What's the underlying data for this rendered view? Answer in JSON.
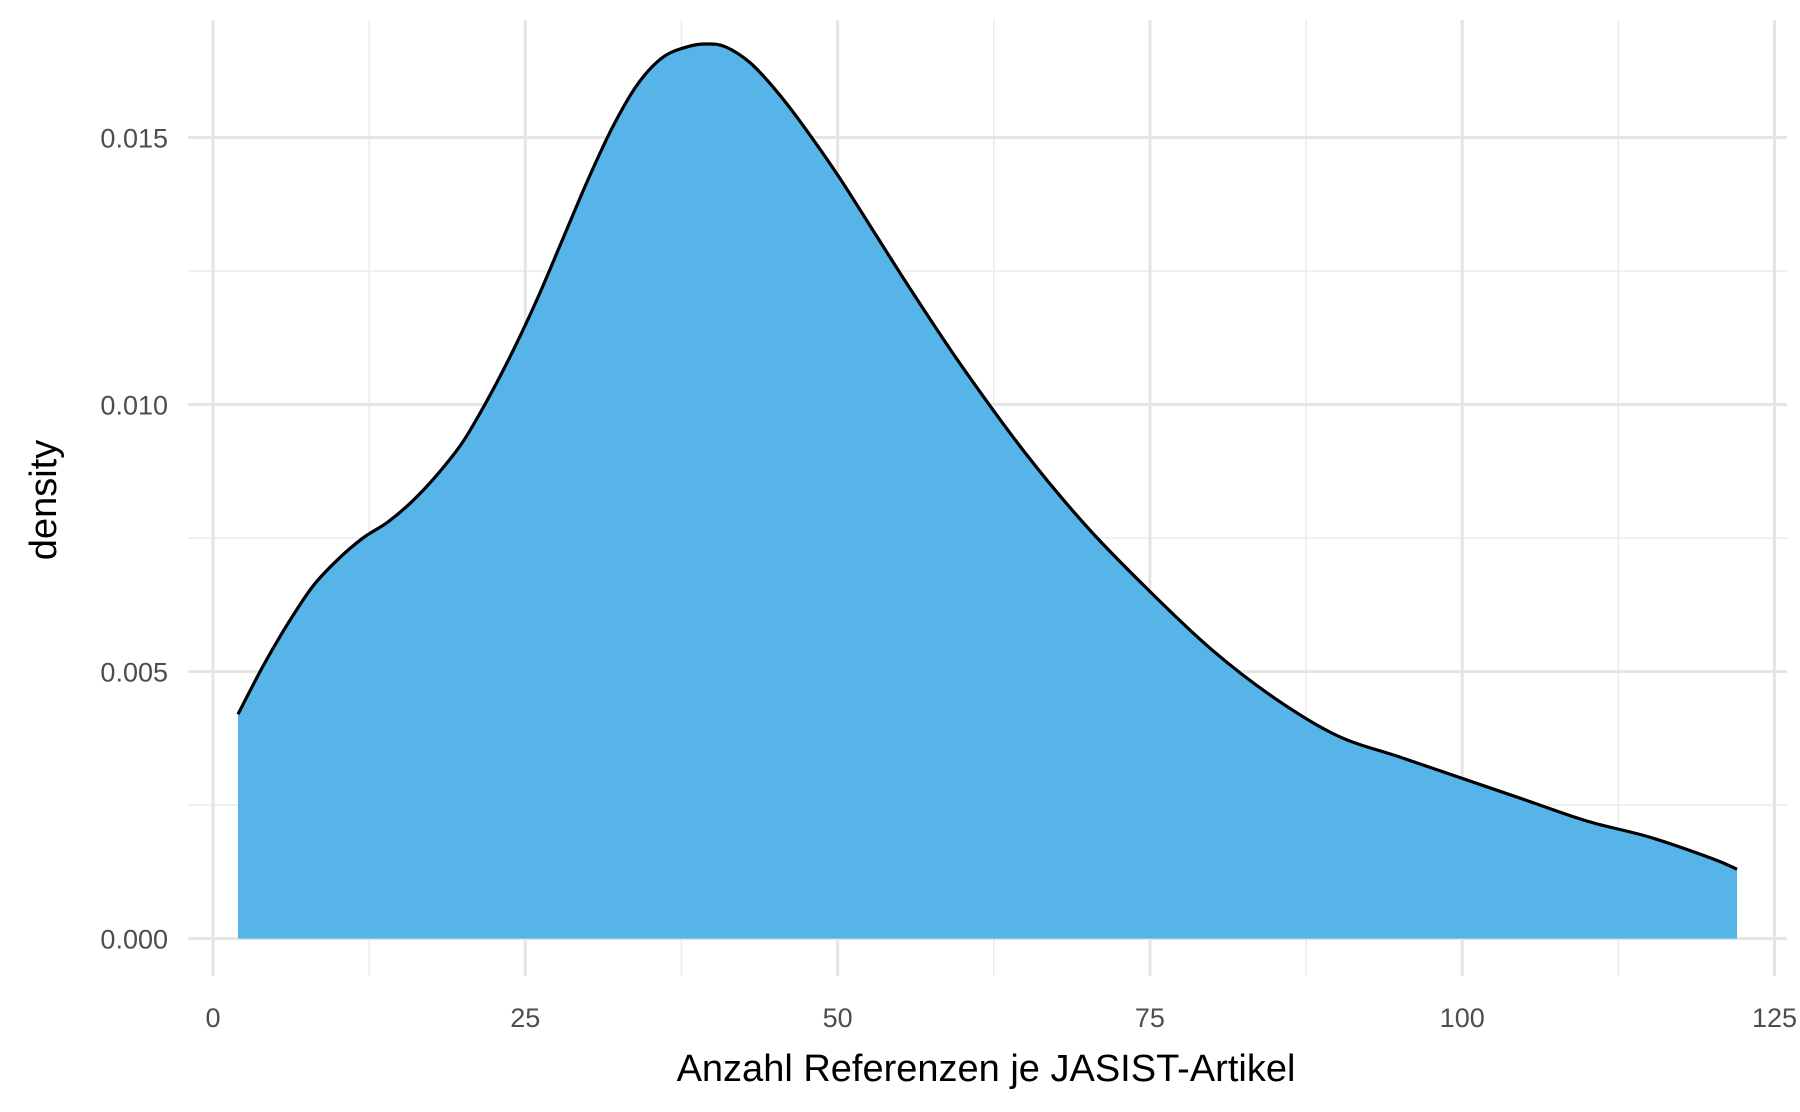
{
  "chart_data": {
    "type": "area",
    "title": "",
    "xlabel": "Anzahl Referenzen je JASIST-Artikel",
    "ylabel": "density",
    "xlim": [
      -2,
      126
    ],
    "ylim": [
      -0.0007,
      0.0172
    ],
    "x_ticks": [
      0,
      25,
      50,
      75,
      100,
      125
    ],
    "x_tick_labels": [
      "0",
      "25",
      "50",
      "75",
      "100",
      "125"
    ],
    "y_ticks": [
      0,
      0.005,
      0.01,
      0.015
    ],
    "y_tick_labels": [
      "0.000",
      "0.005",
      "0.010",
      "0.015"
    ],
    "x_minor_ticks": [
      12.5,
      37.5,
      62.5,
      87.5,
      112.5
    ],
    "y_minor_ticks": [
      0.0025,
      0.0075,
      0.0125
    ],
    "grid": true,
    "legend": "none",
    "fill_color": "#56B4E9",
    "line_color": "#000000",
    "series": [
      {
        "x": [
          2,
          4,
          6,
          8,
          10,
          12,
          14,
          16,
          18,
          20,
          22,
          24,
          26,
          28,
          30,
          32,
          34,
          36,
          38,
          39.5,
          41,
          43,
          45,
          47,
          50,
          53,
          56,
          60,
          65,
          70,
          75,
          80,
          85,
          90,
          95,
          100,
          105,
          110,
          115,
          120,
          122
        ],
        "y": [
          0.0042,
          0.0051,
          0.0059,
          0.0066,
          0.0071,
          0.0075,
          0.0078,
          0.0082,
          0.0087,
          0.0093,
          0.0101,
          0.011,
          0.012,
          0.0131,
          0.0142,
          0.0152,
          0.016,
          0.0165,
          0.0167,
          0.01675,
          0.0167,
          0.0164,
          0.0159,
          0.0153,
          0.0143,
          0.0132,
          0.0121,
          0.0107,
          0.0091,
          0.0077,
          0.0065,
          0.0054,
          0.0045,
          0.0038,
          0.0034,
          0.003,
          0.0026,
          0.0022,
          0.0019,
          0.0015,
          0.0013
        ]
      }
    ]
  }
}
